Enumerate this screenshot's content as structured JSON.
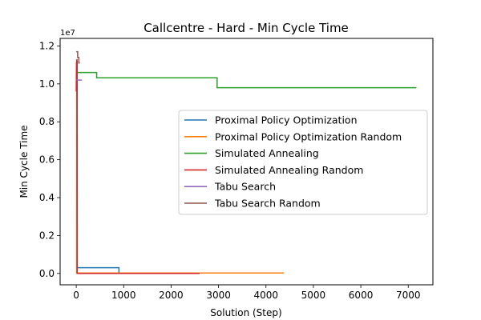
{
  "chart_data": {
    "type": "line",
    "title": "Callcentre - Hard - Min Cycle Time",
    "xlabel": "Solution (Step)",
    "ylabel": "Min Cycle Time",
    "y_offset_label": "1e7",
    "y_scale": 10000000,
    "xlim": [
      -340,
      7520
    ],
    "ylim": [
      -600000,
      12400000
    ],
    "xticks": [
      0,
      1000,
      2000,
      3000,
      4000,
      5000,
      6000,
      7000
    ],
    "xtick_labels": [
      "0",
      "1000",
      "2000",
      "3000",
      "4000",
      "5000",
      "6000",
      "7000"
    ],
    "yticks": [
      0,
      2000000,
      4000000,
      6000000,
      8000000,
      10000000,
      12000000
    ],
    "ytick_labels": [
      "0.0",
      "0.2",
      "0.4",
      "0.6",
      "0.8",
      "1.0",
      "1.2"
    ],
    "grid": false,
    "legend_position": "center-right",
    "series": [
      {
        "name": "Proximal Policy Optimization",
        "color": "#1f77b4",
        "points": [
          [
            0,
            11200000
          ],
          [
            20,
            11200000
          ],
          [
            20,
            300000
          ],
          [
            900,
            300000
          ],
          [
            900,
            0
          ],
          [
            920,
            0
          ]
        ]
      },
      {
        "name": "Proximal Policy Optimization Random",
        "color": "#ff7f0e",
        "points": [
          [
            0,
            11000000
          ],
          [
            10,
            11000000
          ],
          [
            10,
            20000
          ],
          [
            4380,
            20000
          ]
        ]
      },
      {
        "name": "Simulated Annealing",
        "color": "#2ca02c",
        "points": [
          [
            0,
            10600000
          ],
          [
            430,
            10600000
          ],
          [
            430,
            10320000
          ],
          [
            2970,
            10320000
          ],
          [
            2970,
            9800000
          ],
          [
            7170,
            9800000
          ]
        ]
      },
      {
        "name": "Simulated Annealing Random",
        "color": "#d62728",
        "points": [
          [
            0,
            9600000
          ],
          [
            5,
            11100000
          ],
          [
            10,
            11200000
          ],
          [
            15,
            11300000
          ],
          [
            20,
            0
          ],
          [
            2600,
            0
          ]
        ]
      },
      {
        "name": "Tabu Search",
        "color": "#9467bd",
        "points": [
          [
            0,
            10200000
          ],
          [
            120,
            10200000
          ]
        ]
      },
      {
        "name": "Tabu Search Random",
        "color": "#8c564b",
        "points": [
          [
            0,
            11700000
          ],
          [
            30,
            11700000
          ],
          [
            30,
            11400000
          ],
          [
            55,
            11400000
          ],
          [
            55,
            11100000
          ],
          [
            75,
            11100000
          ]
        ]
      }
    ]
  }
}
